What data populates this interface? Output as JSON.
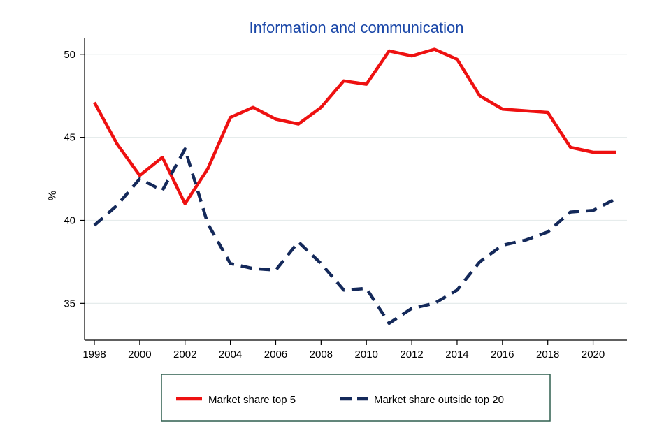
{
  "chart_data": {
    "type": "line",
    "title": "Information and communication",
    "title_color": "#1a47a8",
    "xlabel": "",
    "ylabel": "%",
    "x": [
      1998,
      1999,
      2000,
      2001,
      2002,
      2003,
      2004,
      2005,
      2006,
      2007,
      2008,
      2009,
      2010,
      2011,
      2012,
      2013,
      2014,
      2015,
      2016,
      2017,
      2018,
      2019,
      2020,
      2021
    ],
    "xlim": [
      1998,
      2021
    ],
    "ylim": [
      33.5,
      51
    ],
    "x_ticks": [
      1998,
      2000,
      2002,
      2004,
      2006,
      2008,
      2010,
      2012,
      2014,
      2016,
      2018,
      2020
    ],
    "y_ticks": [
      35,
      40,
      45,
      50
    ],
    "grid": true,
    "grid_color": "#e6ecec",
    "legend_position": "bottom",
    "legend_border_color": "#2f5f4f",
    "series": [
      {
        "name": "Market share top 5",
        "color": "#ee1111",
        "dash": "solid",
        "values": [
          47.1,
          44.6,
          42.7,
          43.8,
          41.0,
          43.1,
          46.2,
          46.8,
          46.1,
          45.8,
          46.8,
          48.4,
          48.2,
          50.2,
          49.9,
          50.3,
          49.7,
          47.5,
          46.7,
          46.6,
          46.5,
          44.4,
          44.1,
          44.1
        ]
      },
      {
        "name": "Market share outside top 20",
        "color": "#14295a",
        "dash": "dashed",
        "values": [
          39.7,
          40.9,
          42.5,
          41.8,
          44.3,
          39.8,
          37.4,
          37.1,
          37.0,
          38.7,
          37.4,
          35.8,
          35.9,
          33.8,
          34.7,
          35.0,
          35.8,
          37.5,
          38.5,
          38.8,
          39.3,
          40.5,
          40.6,
          41.3
        ]
      }
    ]
  }
}
